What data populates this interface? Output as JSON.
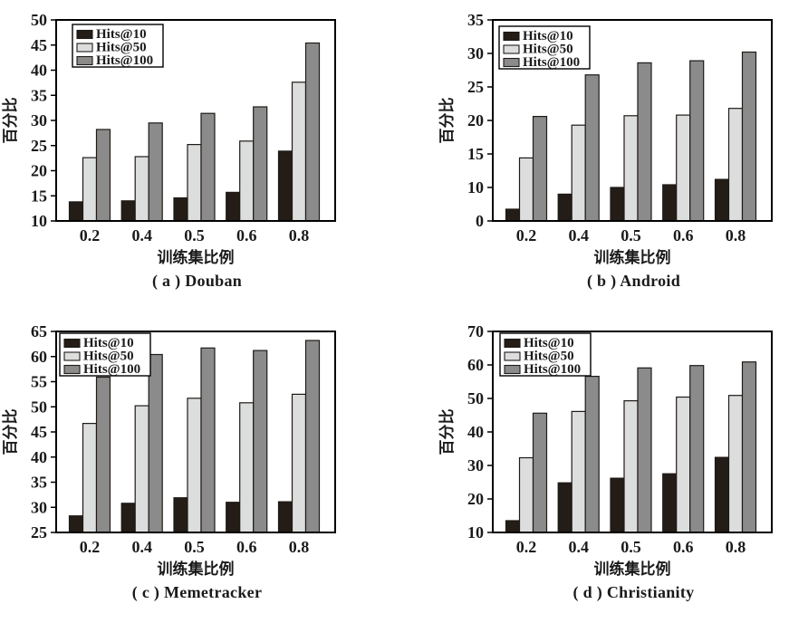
{
  "style": {
    "background": "#ffffff",
    "bar_colors": [
      "#231c17",
      "#dcdedd",
      "#8b8b8b"
    ],
    "bar_edge_color": "#1f1a16",
    "axis_color": "#000000",
    "text_color": "#1a1a1a"
  },
  "chart_data": [
    {
      "type": "bar",
      "title": "( a ) Douban",
      "xlabel": "训练集比例",
      "ylabel": "百分比",
      "categories": [
        "0.2",
        "0.4",
        "0.5",
        "0.6",
        "0.8"
      ],
      "ylim": [
        10,
        50
      ],
      "yticks": [
        10,
        15,
        20,
        25,
        30,
        35,
        40,
        45,
        50
      ],
      "grid": false,
      "legend_position": "top-left",
      "legend_offset": [
        18,
        5
      ],
      "series": [
        {
          "name": "Hits@10",
          "values": [
            13.8,
            14.0,
            14.6,
            15.7,
            23.9
          ]
        },
        {
          "name": "Hits@50",
          "values": [
            22.6,
            22.8,
            25.2,
            25.9,
            37.6
          ]
        },
        {
          "name": "Hits@100",
          "values": [
            28.2,
            29.5,
            31.4,
            32.7,
            45.4
          ]
        }
      ]
    },
    {
      "type": "bar",
      "title": "( b ) Android",
      "xlabel": "训练集比例",
      "ylabel": "百分比",
      "categories": [
        "0.2",
        "0.4",
        "0.5",
        "0.6",
        "0.8"
      ],
      "ylim": [
        0,
        35
      ],
      "yticks": [
        0,
        10,
        15,
        20,
        25,
        30,
        35
      ],
      "grid": false,
      "legend_position": "top-left",
      "legend_offset": [
        7,
        7
      ],
      "series": [
        {
          "name": "Hits@10",
          "values": [
            3.5,
            8.0,
            10.0,
            10.4,
            11.2
          ]
        },
        {
          "name": "Hits@50",
          "values": [
            14.4,
            19.3,
            20.7,
            20.8,
            21.8
          ]
        },
        {
          "name": "Hits@100",
          "values": [
            20.6,
            26.8,
            28.6,
            28.9,
            30.2
          ]
        }
      ]
    },
    {
      "type": "bar",
      "title": "( c ) Memetracker",
      "xlabel": "训练集比例",
      "ylabel": "百分比",
      "categories": [
        "0.2",
        "0.4",
        "0.5",
        "0.6",
        "0.8"
      ],
      "ylim": [
        25,
        65
      ],
      "yticks": [
        25,
        30,
        35,
        40,
        45,
        50,
        55,
        60,
        65
      ],
      "grid": false,
      "legend_position": "top-left",
      "legend_offset": [
        4,
        2
      ],
      "series": [
        {
          "name": "Hits@10",
          "values": [
            28.3,
            30.8,
            31.9,
            31.0,
            31.1
          ]
        },
        {
          "name": "Hits@50",
          "values": [
            46.7,
            50.2,
            51.7,
            50.8,
            52.5
          ]
        },
        {
          "name": "Hits@100",
          "values": [
            55.9,
            60.4,
            61.7,
            61.2,
            63.2
          ]
        }
      ]
    },
    {
      "type": "bar",
      "title": "( d ) Christianity",
      "xlabel": "训练集比例",
      "ylabel": "百分比",
      "categories": [
        "0.2",
        "0.4",
        "0.5",
        "0.6",
        "0.8"
      ],
      "ylim": [
        10,
        70
      ],
      "yticks": [
        10,
        20,
        30,
        40,
        50,
        60,
        70
      ],
      "grid": false,
      "legend_position": "top-left",
      "legend_offset": [
        8,
        2
      ],
      "series": [
        {
          "name": "Hits@10",
          "values": [
            13.5,
            24.8,
            26.2,
            27.5,
            32.4
          ]
        },
        {
          "name": "Hits@50",
          "values": [
            32.3,
            46.1,
            49.3,
            50.4,
            50.9
          ]
        },
        {
          "name": "Hits@100",
          "values": [
            45.6,
            56.6,
            59.1,
            59.8,
            60.9
          ]
        }
      ]
    }
  ]
}
